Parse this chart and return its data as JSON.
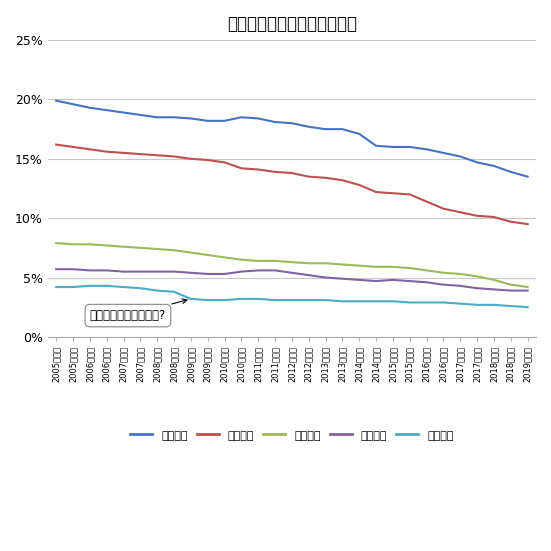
{
  "title": "主要全国紙の朝刊世帯普及率",
  "x_labels": [
    "2005年前期",
    "2005年後期",
    "2006年前期",
    "2006年後期",
    "2007年前期",
    "2007年後期",
    "2008年前期",
    "2008年後期",
    "2009年前期",
    "2009年後期",
    "2010年前期",
    "2010年後期",
    "2011年前期",
    "2011年後期",
    "2012年前期",
    "2012年後期",
    "2013年前期",
    "2013年後期",
    "2014年前期",
    "2014年後期",
    "2015年前期",
    "2015年後期",
    "2016年前期",
    "2016年後期",
    "2017年前期",
    "2017年後期",
    "2018年前期",
    "2018年後期",
    "2019年前期"
  ],
  "yomiuri": [
    19.9,
    19.6,
    19.3,
    19.1,
    18.9,
    18.7,
    18.5,
    18.5,
    18.4,
    18.2,
    18.2,
    18.5,
    18.4,
    18.1,
    18.0,
    17.7,
    17.5,
    17.5,
    17.1,
    16.1,
    16.0,
    16.0,
    15.8,
    15.5,
    15.2,
    14.7,
    14.4,
    13.9,
    13.5
  ],
  "asahi": [
    16.2,
    16.0,
    15.8,
    15.6,
    15.5,
    15.4,
    15.3,
    15.2,
    15.0,
    14.9,
    14.7,
    14.2,
    14.1,
    13.9,
    13.8,
    13.5,
    13.4,
    13.2,
    12.8,
    12.2,
    12.1,
    12.0,
    11.4,
    10.8,
    10.5,
    10.2,
    10.1,
    9.7,
    9.5
  ],
  "mainichi": [
    7.9,
    7.8,
    7.8,
    7.7,
    7.6,
    7.5,
    7.4,
    7.3,
    7.1,
    6.9,
    6.7,
    6.5,
    6.4,
    6.4,
    6.3,
    6.2,
    6.2,
    6.1,
    6.0,
    5.9,
    5.9,
    5.8,
    5.6,
    5.4,
    5.3,
    5.1,
    4.8,
    4.4,
    4.2
  ],
  "nikkei": [
    5.7,
    5.7,
    5.6,
    5.6,
    5.5,
    5.5,
    5.5,
    5.5,
    5.4,
    5.3,
    5.3,
    5.5,
    5.6,
    5.6,
    5.4,
    5.2,
    5.0,
    4.9,
    4.8,
    4.7,
    4.8,
    4.7,
    4.6,
    4.4,
    4.3,
    4.1,
    4.0,
    3.9,
    3.9
  ],
  "sankei": [
    4.2,
    4.2,
    4.3,
    4.3,
    4.2,
    4.1,
    3.9,
    3.8,
    3.2,
    3.1,
    3.1,
    3.2,
    3.2,
    3.1,
    3.1,
    3.1,
    3.1,
    3.0,
    3.0,
    3.0,
    3.0,
    2.9,
    2.9,
    2.9,
    2.8,
    2.7,
    2.7,
    2.6,
    2.5
  ],
  "colors": {
    "yomiuri": "#4472C4",
    "asahi": "#C0504D",
    "mainichi": "#9BBB59",
    "nikkei": "#8064A2",
    "sankei": "#4BACC6"
  },
  "ylim": [
    0,
    25
  ],
  "yticks": [
    0,
    5,
    10,
    15,
    20,
    25
  ],
  "ytick_labels": [
    "0%",
    "5%",
    "10%",
    "15%",
    "20%",
    "25%"
  ],
  "annotation_text": "押し紙制度廃止の影響?",
  "annotation_xi": 8,
  "annotation_yi": 3.2,
  "annotation_xt": 2,
  "annotation_yt": 1.5,
  "legend": [
    "読売新聆",
    "朝日新聆",
    "毎日新聆",
    "日経新聆",
    "産経新聆"
  ],
  "background_color": "#FFFFFF",
  "grid_color": "#C8C8C8"
}
